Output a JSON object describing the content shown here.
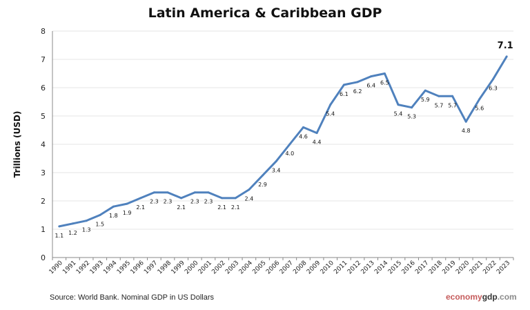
{
  "chart_data": {
    "type": "line",
    "title": "Latin America & Caribbean GDP",
    "ylabel": "Trillions (USD)",
    "xlabel": "",
    "ylim": [
      0,
      8
    ],
    "yticks": [
      0,
      1,
      2,
      3,
      4,
      5,
      6,
      7,
      8
    ],
    "grid": true,
    "legend": "none",
    "line_color": "#4f81bd",
    "categories": [
      "1990",
      "1991",
      "1992",
      "1993",
      "1994",
      "1995",
      "1996",
      "1997",
      "1998",
      "1999",
      "2000",
      "2001",
      "2002",
      "2003",
      "2004",
      "2005",
      "2006",
      "2007",
      "2008",
      "2009",
      "2010",
      "2011",
      "2012",
      "2013",
      "2014",
      "2015",
      "2016",
      "2017",
      "2018",
      "2019",
      "2020",
      "2021",
      "2022",
      "2023"
    ],
    "values": [
      1.1,
      1.2,
      1.3,
      1.5,
      1.8,
      1.9,
      2.1,
      2.3,
      2.3,
      2.1,
      2.3,
      2.3,
      2.1,
      2.1,
      2.4,
      2.9,
      3.4,
      4.0,
      4.6,
      4.4,
      5.4,
      6.1,
      6.2,
      6.4,
      6.5,
      5.4,
      5.3,
      5.9,
      5.7,
      5.7,
      4.8,
      5.6,
      6.3,
      7.1
    ],
    "data_labels": [
      "1.1",
      "1.2",
      "1.3",
      "1.5",
      "1.8",
      "1.9",
      "2.1",
      "2.3",
      "2.3",
      "2.1",
      "2.3",
      "2.3",
      "2.1",
      "2.1",
      "2.4",
      "2.9",
      "3.4",
      "4.0",
      "4.6",
      "4.4",
      "5.4",
      "6.1",
      "6.2",
      "6.4",
      "6.5",
      "5.4",
      "5.3",
      "5.9",
      "5.7",
      "5.7",
      "4.8",
      "5.6",
      "6.3",
      "7.1"
    ]
  },
  "footer": {
    "source": "Source: World Bank.  Nominal GDP  in US Dollars",
    "brand_part1": "economy",
    "brand_part2": "gdp",
    "brand_part3": ".com"
  }
}
